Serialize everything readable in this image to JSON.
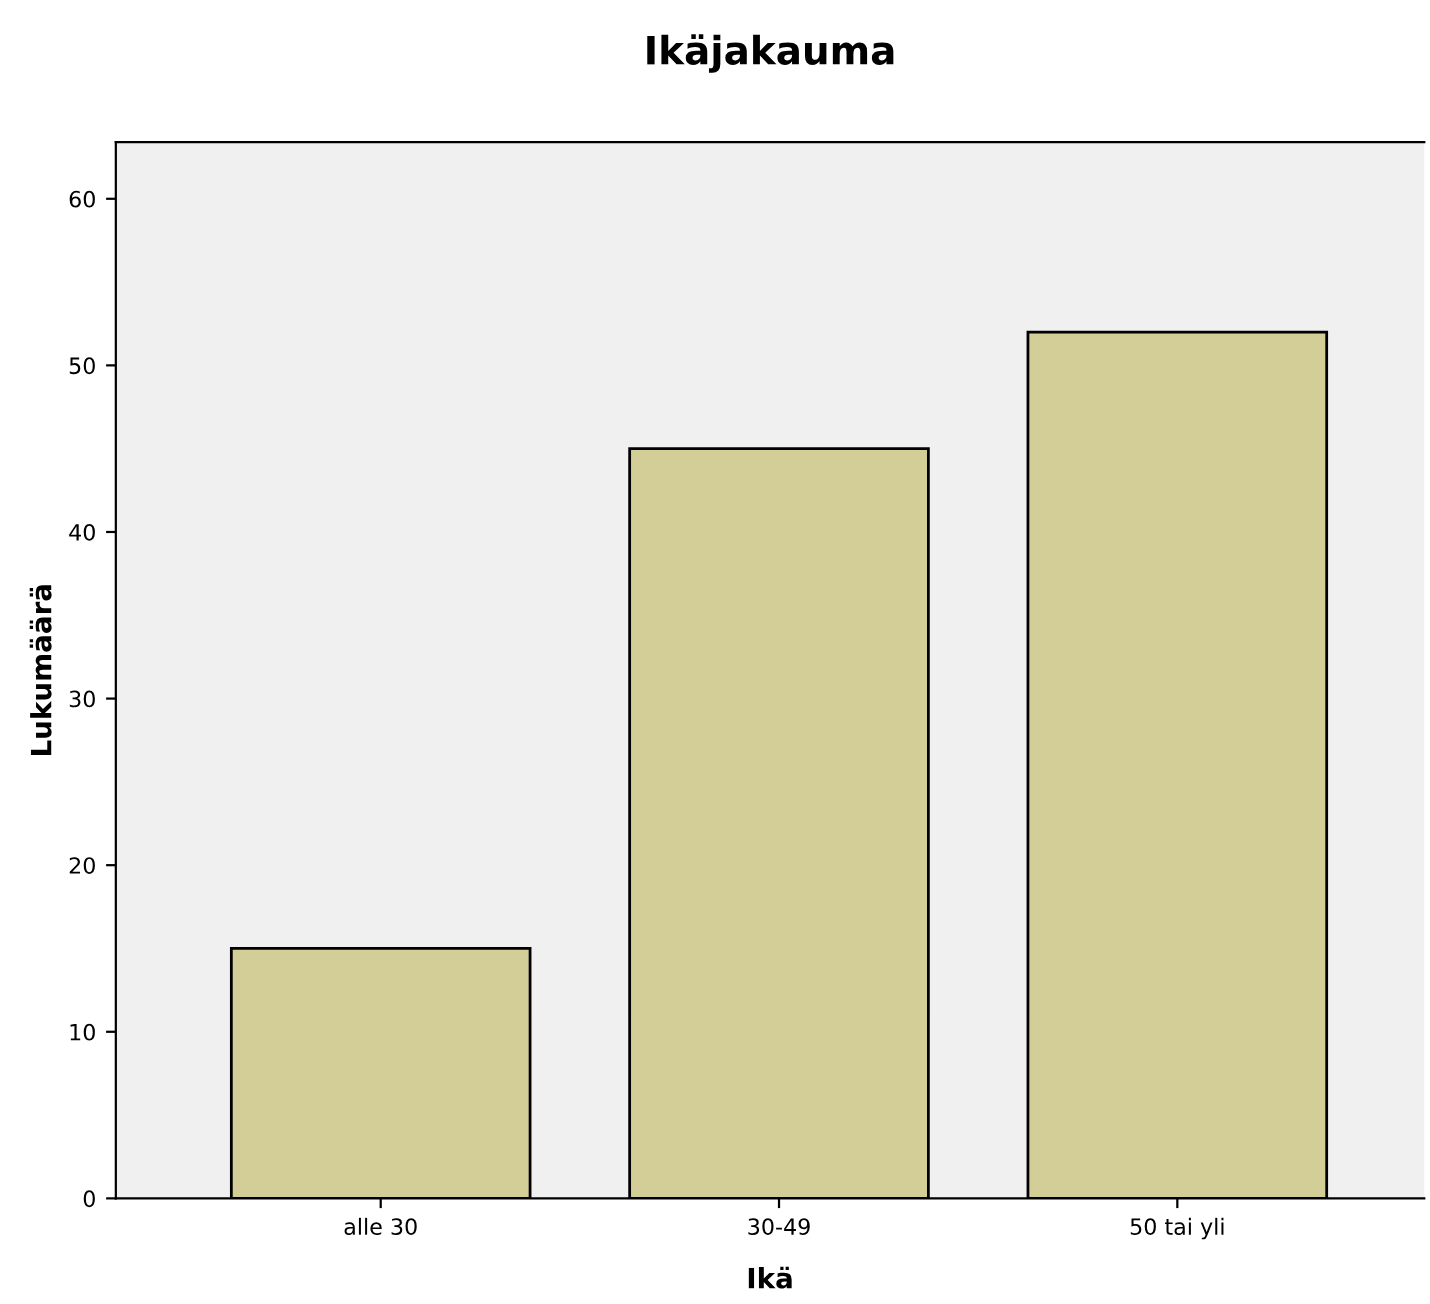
{
  "chart_data": {
    "type": "bar",
    "title": "Ikäjakauma",
    "xlabel": "Ikä",
    "ylabel": "Lukumäärä",
    "categories": [
      "alle 30",
      "30-49",
      "50 tai yli"
    ],
    "series": [
      {
        "color": "#d3ce97",
        "values": [
          15,
          45,
          52
        ]
      }
    ],
    "ylim": [
      0,
      63.4
    ],
    "yticks": [
      0,
      10,
      20,
      30,
      40,
      50,
      60
    ],
    "grid": false,
    "legend": false
  }
}
